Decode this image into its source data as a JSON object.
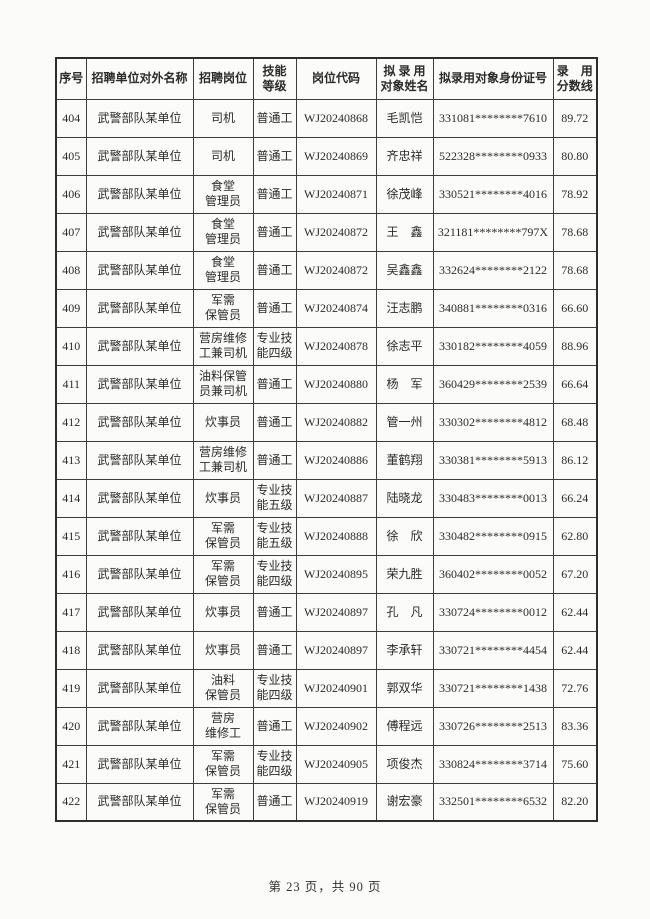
{
  "page": {
    "footer": "第 23 页，共 90 页"
  },
  "table": {
    "columns": [
      {
        "key": "index",
        "label": "序号",
        "display": "序号"
      },
      {
        "key": "unit",
        "label": "招聘单位对外名称",
        "display": "招聘单位对外名称"
      },
      {
        "key": "position",
        "label": "招聘岗位",
        "display": "招聘岗位"
      },
      {
        "key": "skill",
        "label": "技能等级",
        "display": "技能\n等级"
      },
      {
        "key": "code",
        "label": "岗位代码",
        "display": "岗位代码"
      },
      {
        "key": "name",
        "label": "拟录用对象姓名",
        "display": "拟 录 用\n对象姓名"
      },
      {
        "key": "id",
        "label": "拟录用对象身份证号",
        "display": "拟录用对象身份证号"
      },
      {
        "key": "score",
        "label": "录用分数线",
        "display": "录　用\n分数线"
      }
    ],
    "rows": [
      {
        "index": "404",
        "unit": "武警部队某单位",
        "position": "司机",
        "skill": "普通工",
        "code": "WJ20240868",
        "name": "毛凯恺",
        "id": "331081********7610",
        "score": "89.72"
      },
      {
        "index": "405",
        "unit": "武警部队某单位",
        "position": "司机",
        "skill": "普通工",
        "code": "WJ20240869",
        "name": "齐忠祥",
        "id": "522328********0933",
        "score": "80.80"
      },
      {
        "index": "406",
        "unit": "武警部队某单位",
        "position": "食堂\n管理员",
        "skill": "普通工",
        "code": "WJ20240871",
        "name": "徐茂峰",
        "id": "330521********4016",
        "score": "78.92"
      },
      {
        "index": "407",
        "unit": "武警部队某单位",
        "position": "食堂\n管理员",
        "skill": "普通工",
        "code": "WJ20240872",
        "name": "王　鑫",
        "id": "321181********797X",
        "score": "78.68"
      },
      {
        "index": "408",
        "unit": "武警部队某单位",
        "position": "食堂\n管理员",
        "skill": "普通工",
        "code": "WJ20240872",
        "name": "吴鑫鑫",
        "id": "332624********2122",
        "score": "78.68"
      },
      {
        "index": "409",
        "unit": "武警部队某单位",
        "position": "军需\n保管员",
        "skill": "普通工",
        "code": "WJ20240874",
        "name": "汪志鹏",
        "id": "340881********0316",
        "score": "66.60"
      },
      {
        "index": "410",
        "unit": "武警部队某单位",
        "position": "营房维修\n工兼司机",
        "skill": "专业技\n能四级",
        "code": "WJ20240878",
        "name": "徐志平",
        "id": "330182********4059",
        "score": "88.96"
      },
      {
        "index": "411",
        "unit": "武警部队某单位",
        "position": "油料保管\n员兼司机",
        "skill": "普通工",
        "code": "WJ20240880",
        "name": "杨　军",
        "id": "360429********2539",
        "score": "66.64"
      },
      {
        "index": "412",
        "unit": "武警部队某单位",
        "position": "炊事员",
        "skill": "普通工",
        "code": "WJ20240882",
        "name": "管一州",
        "id": "330302********4812",
        "score": "68.48"
      },
      {
        "index": "413",
        "unit": "武警部队某单位",
        "position": "营房维修\n工兼司机",
        "skill": "普通工",
        "code": "WJ20240886",
        "name": "董鹤翔",
        "id": "330381********5913",
        "score": "86.12"
      },
      {
        "index": "414",
        "unit": "武警部队某单位",
        "position": "炊事员",
        "skill": "专业技\n能五级",
        "code": "WJ20240887",
        "name": "陆晓龙",
        "id": "330483********0013",
        "score": "66.24"
      },
      {
        "index": "415",
        "unit": "武警部队某单位",
        "position": "军需\n保管员",
        "skill": "专业技\n能五级",
        "code": "WJ20240888",
        "name": "徐　欣",
        "id": "330482********0915",
        "score": "62.80"
      },
      {
        "index": "416",
        "unit": "武警部队某单位",
        "position": "军需\n保管员",
        "skill": "专业技\n能四级",
        "code": "WJ20240895",
        "name": "荣九胜",
        "id": "360402********0052",
        "score": "67.20"
      },
      {
        "index": "417",
        "unit": "武警部队某单位",
        "position": "炊事员",
        "skill": "普通工",
        "code": "WJ20240897",
        "name": "孔　凡",
        "id": "330724********0012",
        "score": "62.44"
      },
      {
        "index": "418",
        "unit": "武警部队某单位",
        "position": "炊事员",
        "skill": "普通工",
        "code": "WJ20240897",
        "name": "李承轩",
        "id": "330721********4454",
        "score": "62.44"
      },
      {
        "index": "419",
        "unit": "武警部队某单位",
        "position": "油料\n保管员",
        "skill": "专业技\n能四级",
        "code": "WJ20240901",
        "name": "郭双华",
        "id": "330721********1438",
        "score": "72.76"
      },
      {
        "index": "420",
        "unit": "武警部队某单位",
        "position": "营房\n维修工",
        "skill": "普通工",
        "code": "WJ20240902",
        "name": "傅程远",
        "id": "330726********2513",
        "score": "83.36"
      },
      {
        "index": "421",
        "unit": "武警部队某单位",
        "position": "军需\n保管员",
        "skill": "专业技\n能四级",
        "code": "WJ20240905",
        "name": "项俊杰",
        "id": "330824********3714",
        "score": "75.60"
      },
      {
        "index": "422",
        "unit": "武警部队某单位",
        "position": "军需\n保管员",
        "skill": "普通工",
        "code": "WJ20240919",
        "name": "谢宏豪",
        "id": "332501********6532",
        "score": "82.20"
      }
    ]
  }
}
